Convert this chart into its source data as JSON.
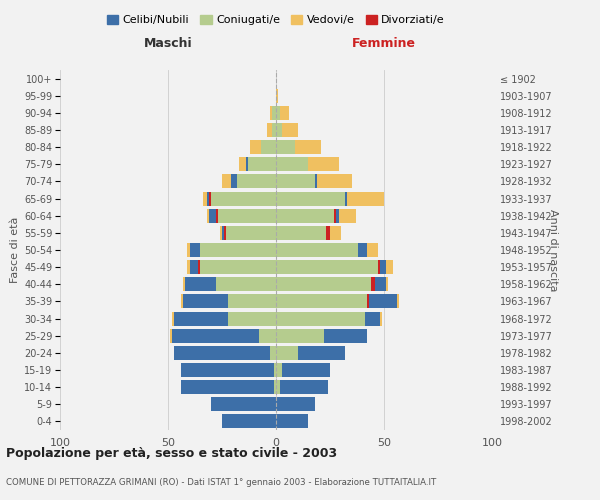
{
  "age_groups": [
    "0-4",
    "5-9",
    "10-14",
    "15-19",
    "20-24",
    "25-29",
    "30-34",
    "35-39",
    "40-44",
    "45-49",
    "50-54",
    "55-59",
    "60-64",
    "65-69",
    "70-74",
    "75-79",
    "80-84",
    "85-89",
    "90-94",
    "95-99",
    "100+"
  ],
  "birth_years": [
    "1998-2002",
    "1993-1997",
    "1988-1992",
    "1983-1987",
    "1978-1982",
    "1973-1977",
    "1968-1972",
    "1963-1967",
    "1958-1962",
    "1953-1957",
    "1948-1952",
    "1943-1947",
    "1938-1942",
    "1933-1937",
    "1928-1932",
    "1923-1927",
    "1918-1922",
    "1913-1917",
    "1908-1912",
    "1903-1907",
    "≤ 1902"
  ],
  "maschi": {
    "celibi": [
      25,
      30,
      43,
      43,
      44,
      40,
      25,
      21,
      14,
      5,
      5,
      2,
      4,
      2,
      3,
      1,
      0,
      0,
      0,
      0,
      0
    ],
    "coniugati": [
      0,
      0,
      1,
      1,
      3,
      8,
      22,
      22,
      28,
      35,
      35,
      23,
      27,
      30,
      18,
      13,
      7,
      2,
      2,
      0,
      0
    ],
    "vedovi": [
      0,
      0,
      0,
      0,
      0,
      1,
      1,
      1,
      1,
      1,
      1,
      1,
      1,
      2,
      4,
      3,
      5,
      2,
      1,
      0,
      0
    ],
    "divorziati": [
      0,
      0,
      0,
      0,
      0,
      0,
      0,
      0,
      0,
      1,
      0,
      1,
      1,
      1,
      0,
      0,
      0,
      0,
      0,
      0,
      0
    ]
  },
  "femmine": {
    "nubili": [
      15,
      18,
      22,
      22,
      22,
      20,
      7,
      14,
      7,
      4,
      4,
      2,
      2,
      1,
      1,
      0,
      0,
      0,
      0,
      0,
      0
    ],
    "coniugate": [
      0,
      0,
      2,
      3,
      10,
      22,
      41,
      42,
      44,
      47,
      38,
      23,
      27,
      32,
      18,
      15,
      9,
      3,
      2,
      0,
      0
    ],
    "vedove": [
      0,
      0,
      0,
      0,
      0,
      0,
      1,
      1,
      1,
      3,
      5,
      5,
      8,
      17,
      16,
      14,
      12,
      7,
      4,
      1,
      0
    ],
    "divorziate": [
      0,
      0,
      0,
      0,
      0,
      0,
      0,
      1,
      2,
      1,
      0,
      2,
      1,
      0,
      0,
      0,
      0,
      0,
      0,
      0,
      0
    ]
  },
  "colors": {
    "celibi_nubili": "#3d6fa8",
    "coniugati": "#b5cc8e",
    "vedovi": "#f0c060",
    "divorziati": "#cc2222"
  },
  "xlim": 100,
  "title": "Popolazione per età, sesso e stato civile - 2003",
  "subtitle": "COMUNE DI PETTORAZZA GRIMANI (RO) - Dati ISTAT 1° gennaio 2003 - Elaborazione TUTTAITALIA.IT",
  "xlabel_left": "Maschi",
  "xlabel_right": "Femmine",
  "ylabel_left": "Fasce di età",
  "ylabel_right": "Anni di nascita",
  "legend_labels": [
    "Celibi/Nubili",
    "Coniugati/e",
    "Vedovi/e",
    "Divorziati/e"
  ],
  "bg_color": "#f2f2f2",
  "grid_color": "#cccccc"
}
